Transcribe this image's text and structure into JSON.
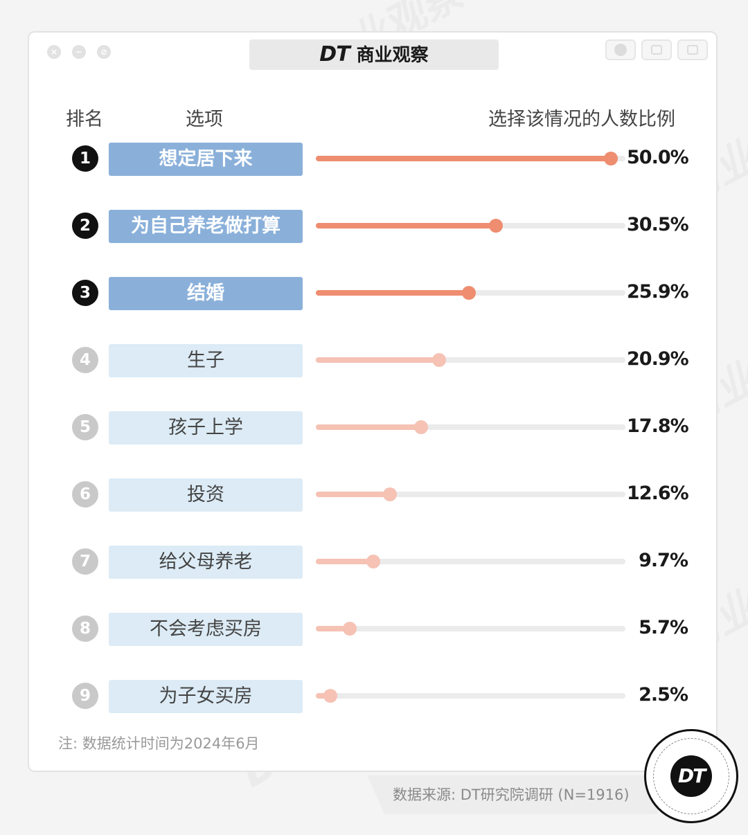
{
  "window": {
    "logo": "DT",
    "title": "商业观察"
  },
  "headers": {
    "rank": "排名",
    "option": "选项",
    "ratio": "选择该情况的人数比例"
  },
  "chart_data": {
    "type": "bar",
    "categories": [
      "想定居下来",
      "为自己养老做打算",
      "结婚",
      "生子",
      "孩子上学",
      "投资",
      "给父母养老",
      "不会考虑买房",
      "为子女买房"
    ],
    "ranks": [
      "1",
      "2",
      "3",
      "4",
      "5",
      "6",
      "7",
      "8",
      "9"
    ],
    "values": [
      50.0,
      30.5,
      25.9,
      20.9,
      17.8,
      12.6,
      9.7,
      5.7,
      2.5
    ],
    "value_labels": [
      "50.0%",
      "30.5%",
      "25.9%",
      "20.9%",
      "17.8%",
      "12.6%",
      "9.7%",
      "5.7%",
      "2.5%"
    ],
    "xlim": [
      0,
      52.5
    ],
    "highlighted_top": 3,
    "colors": {
      "top_fill": "#ee8d70",
      "rest_fill": "#f5c2b4",
      "top_label_bg": "#8ab0da",
      "rest_label_bg": "#dcebf5",
      "track": "#ebebeb"
    }
  },
  "footer": {
    "note": "注: 数据统计时间为2024年6月",
    "source": "数据来源: DT研究院调研 (N=1916)",
    "badge": "DT"
  },
  "watermark": "DT 商业观察"
}
